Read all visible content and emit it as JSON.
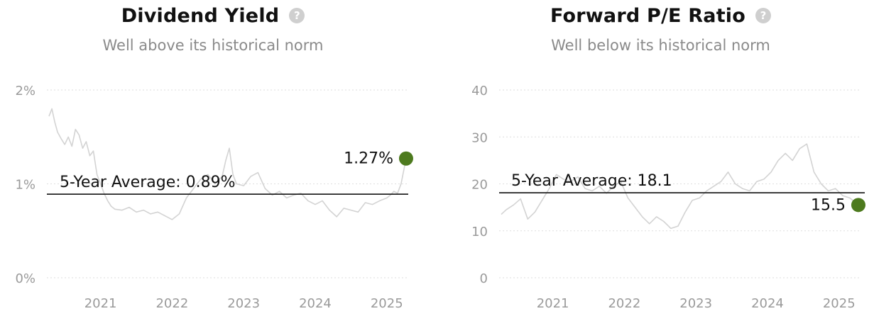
{
  "colors": {
    "accent": "#4d7a1e",
    "line": "#d3d3d3",
    "grid": "#dedede",
    "avg": "#111111",
    "tick": "#9a9a9a"
  },
  "icons": {
    "help": "question-circle-icon"
  },
  "chart_data": [
    {
      "type": "line",
      "title": "Dividend Yield",
      "subtitle": "Well above its historical norm",
      "help_glyph": "?",
      "y_ticks": [
        0,
        1,
        2
      ],
      "y_tick_labels": [
        "0%",
        "1%",
        "2%"
      ],
      "ylim": [
        0,
        2
      ],
      "x_tick_labels": [
        "2021",
        "2022",
        "2023",
        "2024",
        "2025"
      ],
      "x_ticks": [
        2021.0,
        2022.0,
        2023.0,
        2024.0,
        2025.0
      ],
      "xlim": [
        2020.25,
        2025.3
      ],
      "grid": true,
      "average": {
        "label": "5-Year Average: 0.89%",
        "value": 0.89
      },
      "latest": {
        "label": "1.27%",
        "x": 2025.27,
        "value": 1.27
      },
      "series": [
        {
          "x": [
            2020.28,
            2020.32,
            2020.36,
            2020.4,
            2020.45,
            2020.5,
            2020.55,
            2020.6,
            2020.65,
            2020.7,
            2020.75,
            2020.8,
            2020.85,
            2020.9,
            2020.95,
            2021.0,
            2021.05,
            2021.1,
            2021.15,
            2021.2,
            2021.3,
            2021.4,
            2021.5,
            2021.6,
            2021.7,
            2021.8,
            2021.9,
            2022.0,
            2022.1,
            2022.2,
            2022.3,
            2022.4,
            2022.5,
            2022.6,
            2022.7,
            2022.75,
            2022.8,
            2022.85,
            2022.9,
            2023.0,
            2023.1,
            2023.2,
            2023.3,
            2023.4,
            2023.5,
            2023.6,
            2023.7,
            2023.8,
            2023.9,
            2024.0,
            2024.1,
            2024.2,
            2024.3,
            2024.4,
            2024.5,
            2024.6,
            2024.7,
            2024.8,
            2024.9,
            2025.0,
            2025.05,
            2025.1,
            2025.15,
            2025.2,
            2025.27
          ],
          "values": [
            1.72,
            1.8,
            1.66,
            1.55,
            1.48,
            1.42,
            1.5,
            1.4,
            1.58,
            1.52,
            1.38,
            1.45,
            1.3,
            1.35,
            1.1,
            1.0,
            0.9,
            0.82,
            0.76,
            0.73,
            0.72,
            0.75,
            0.7,
            0.72,
            0.68,
            0.7,
            0.66,
            0.62,
            0.68,
            0.85,
            0.95,
            1.05,
            1.1,
            1.0,
            1.08,
            1.25,
            1.38,
            1.1,
            1.0,
            0.98,
            1.08,
            1.12,
            0.95,
            0.88,
            0.92,
            0.85,
            0.88,
            0.9,
            0.82,
            0.78,
            0.82,
            0.72,
            0.65,
            0.74,
            0.72,
            0.7,
            0.8,
            0.78,
            0.82,
            0.85,
            0.88,
            0.92,
            0.9,
            1.0,
            1.27
          ]
        }
      ]
    },
    {
      "type": "line",
      "title": "Forward P/E Ratio",
      "subtitle": "Well below its historical norm",
      "help_glyph": "?",
      "y_ticks": [
        0,
        10,
        20,
        30,
        40
      ],
      "y_tick_labels": [
        "0",
        "10",
        "20",
        "30",
        "40"
      ],
      "ylim": [
        0,
        40
      ],
      "x_tick_labels": [
        "2021",
        "2022",
        "2023",
        "2024",
        "2025"
      ],
      "x_ticks": [
        2021.0,
        2022.0,
        2023.0,
        2024.0,
        2025.0
      ],
      "xlim": [
        2020.25,
        2025.3
      ],
      "grid": true,
      "average": {
        "label": "5-Year Average: 18.1",
        "value": 18.1
      },
      "latest": {
        "label": "15.5",
        "x": 2025.27,
        "value": 15.5
      },
      "series": [
        {
          "x": [
            2020.28,
            2020.35,
            2020.45,
            2020.55,
            2020.65,
            2020.75,
            2020.85,
            2020.95,
            2021.05,
            2021.15,
            2021.25,
            2021.35,
            2021.45,
            2021.55,
            2021.65,
            2021.75,
            2021.85,
            2021.95,
            2022.05,
            2022.15,
            2022.25,
            2022.35,
            2022.45,
            2022.55,
            2022.65,
            2022.75,
            2022.85,
            2022.95,
            2023.05,
            2023.15,
            2023.25,
            2023.35,
            2023.45,
            2023.55,
            2023.65,
            2023.75,
            2023.85,
            2023.95,
            2024.05,
            2024.15,
            2024.25,
            2024.35,
            2024.45,
            2024.55,
            2024.65,
            2024.75,
            2024.85,
            2024.95,
            2025.05,
            2025.15,
            2025.27
          ],
          "values": [
            13.5,
            14.5,
            15.5,
            16.8,
            12.5,
            14.0,
            16.5,
            19.0,
            22.0,
            21.0,
            20.5,
            21.5,
            19.0,
            18.5,
            19.5,
            18.0,
            19.5,
            20.5,
            17.0,
            15.0,
            13.0,
            11.5,
            13.0,
            12.0,
            10.5,
            11.0,
            14.0,
            16.5,
            17.0,
            18.5,
            19.5,
            20.5,
            22.5,
            20.0,
            19.0,
            18.5,
            20.5,
            21.0,
            22.5,
            25.0,
            26.5,
            25.0,
            27.5,
            28.5,
            22.5,
            20.0,
            18.5,
            19.0,
            17.5,
            17.0,
            15.5
          ]
        }
      ]
    }
  ]
}
